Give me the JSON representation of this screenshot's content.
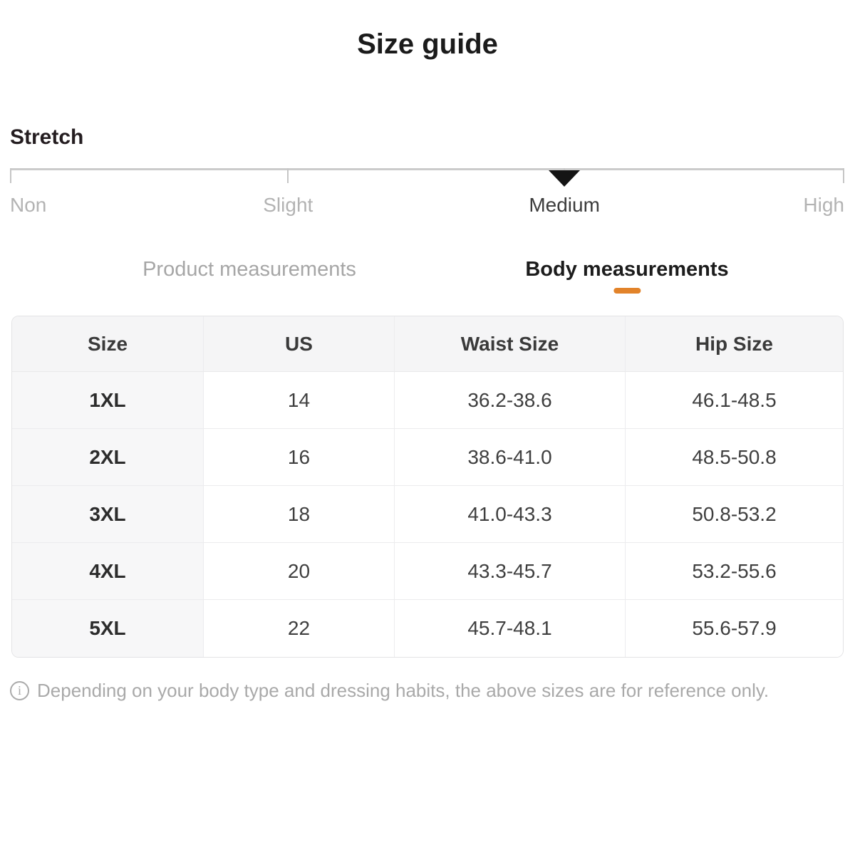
{
  "page": {
    "title": "Size guide"
  },
  "stretch": {
    "label": "Stretch",
    "selected_value": "Medium",
    "options": [
      {
        "label": "Non",
        "selected": false
      },
      {
        "label": "Slight",
        "selected": false
      },
      {
        "label": "Medium",
        "selected": true
      },
      {
        "label": "High",
        "selected": false
      }
    ]
  },
  "tabs": [
    {
      "label": "Product measurements",
      "active": false
    },
    {
      "label": "Body measurements",
      "active": true
    }
  ],
  "table": {
    "headers": [
      "Size",
      "US",
      "Waist Size",
      "Hip Size"
    ],
    "rows": [
      [
        "1XL",
        "14",
        "36.2-38.6",
        "46.1-48.5"
      ],
      [
        "2XL",
        "16",
        "38.6-41.0",
        "48.5-50.8"
      ],
      [
        "3XL",
        "18",
        "41.0-43.3",
        "50.8-53.2"
      ],
      [
        "4XL",
        "20",
        "43.3-45.7",
        "53.2-55.6"
      ],
      [
        "5XL",
        "22",
        "45.7-48.1",
        "55.6-57.9"
      ]
    ]
  },
  "footer": {
    "icon_glyph": "i",
    "note": "Depending on your body type and dressing habits, the above sizes are for reference only."
  },
  "colors": {
    "accent_orange": "#e2832a",
    "marker_black": "#141414",
    "muted_text": "#b3b3b3",
    "selected_text": "#3c3c3c"
  }
}
